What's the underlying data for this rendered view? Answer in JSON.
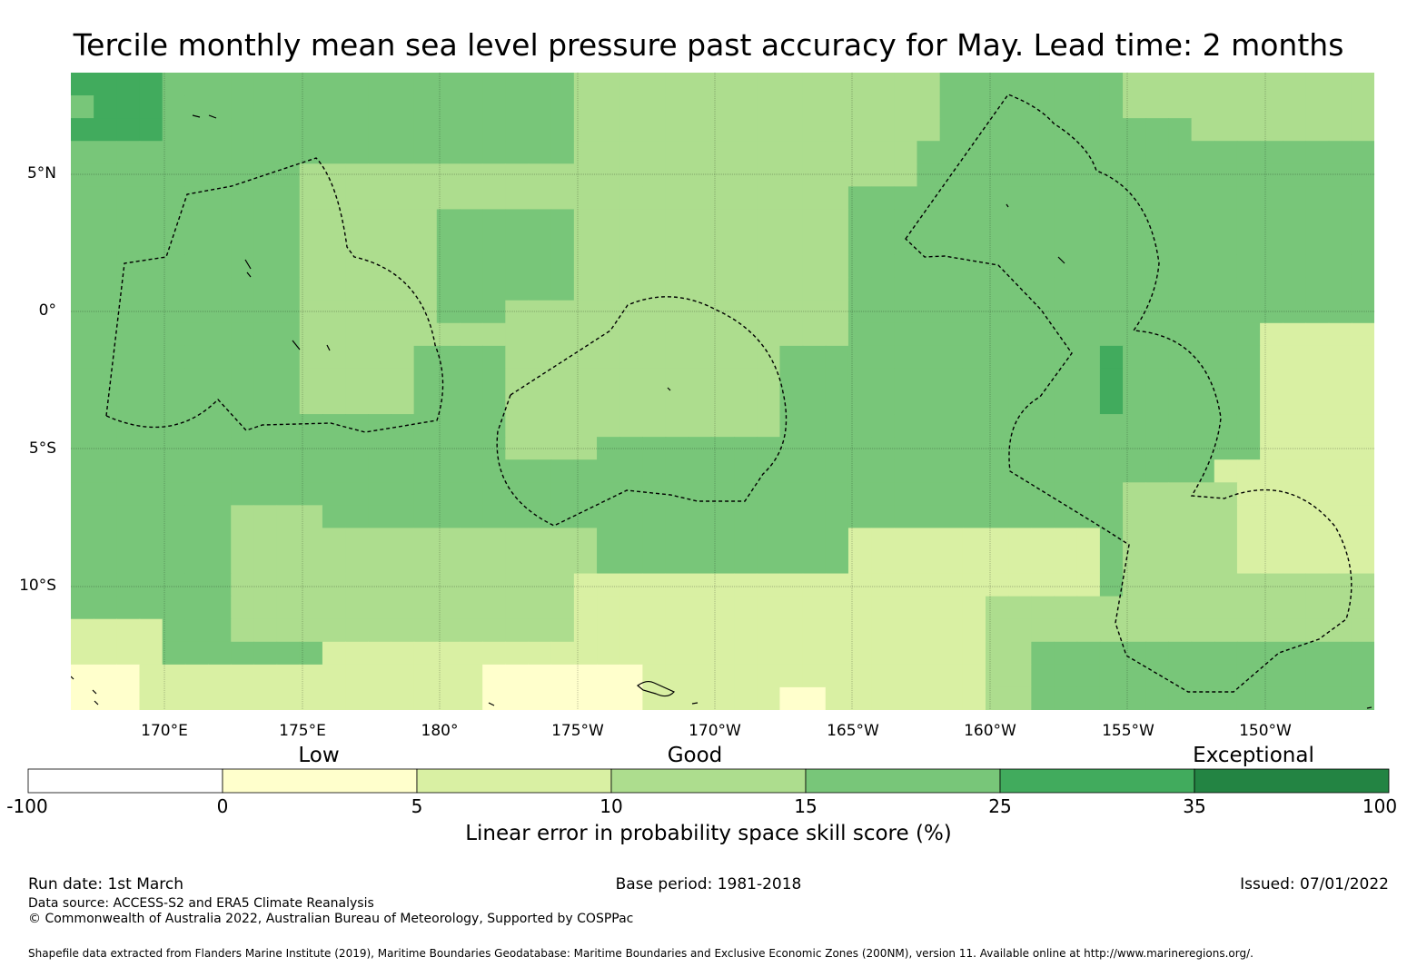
{
  "title": "Tercile monthly mean sea level pressure past accuracy for May. Lead time: 2 months",
  "map": {
    "lat_labels": [
      "5°N",
      "0°",
      "5°S",
      "10°S"
    ],
    "lon_labels": [
      "170°E",
      "175°E",
      "180°",
      "175°W",
      "170°W",
      "165°W",
      "160°W",
      "155°W",
      "150°W"
    ],
    "lon_range_deg_east": [
      166.6,
      213.9
    ],
    "lat_range_deg": [
      -14.6,
      8.6
    ]
  },
  "colorbar": {
    "categories": [
      "Low",
      "Good",
      "Exceptional"
    ],
    "ticks": [
      "-100",
      "0",
      "5",
      "10",
      "15",
      "25",
      "35",
      "100"
    ],
    "colors": [
      "#ffffff",
      "#ffffcc",
      "#d9f0a3",
      "#addd8e",
      "#78c679",
      "#41ab5d",
      "#238443"
    ],
    "label": "Linear error in probability space skill score (%)"
  },
  "footer": {
    "run_date": "Run date: 1st March",
    "base_period": "Base period: 1981-2018",
    "issued": "Issued: 07/01/2022",
    "data_source": "Data source: ACCESS-S2 and ERA5 Climate Reanalysis",
    "copyright": "© Commonwealth of Australia 2022, Australian Bureau of Meteorology, Supported by COSPPac",
    "shapefile": "Shapefile data extracted from Flanders Marine Institute (2019), Maritime Boundaries Geodatabase: Maritime Boundaries and Exclusive Economic Zones (200NM), version 11. Available online at http://www.marineregions.org/."
  }
}
